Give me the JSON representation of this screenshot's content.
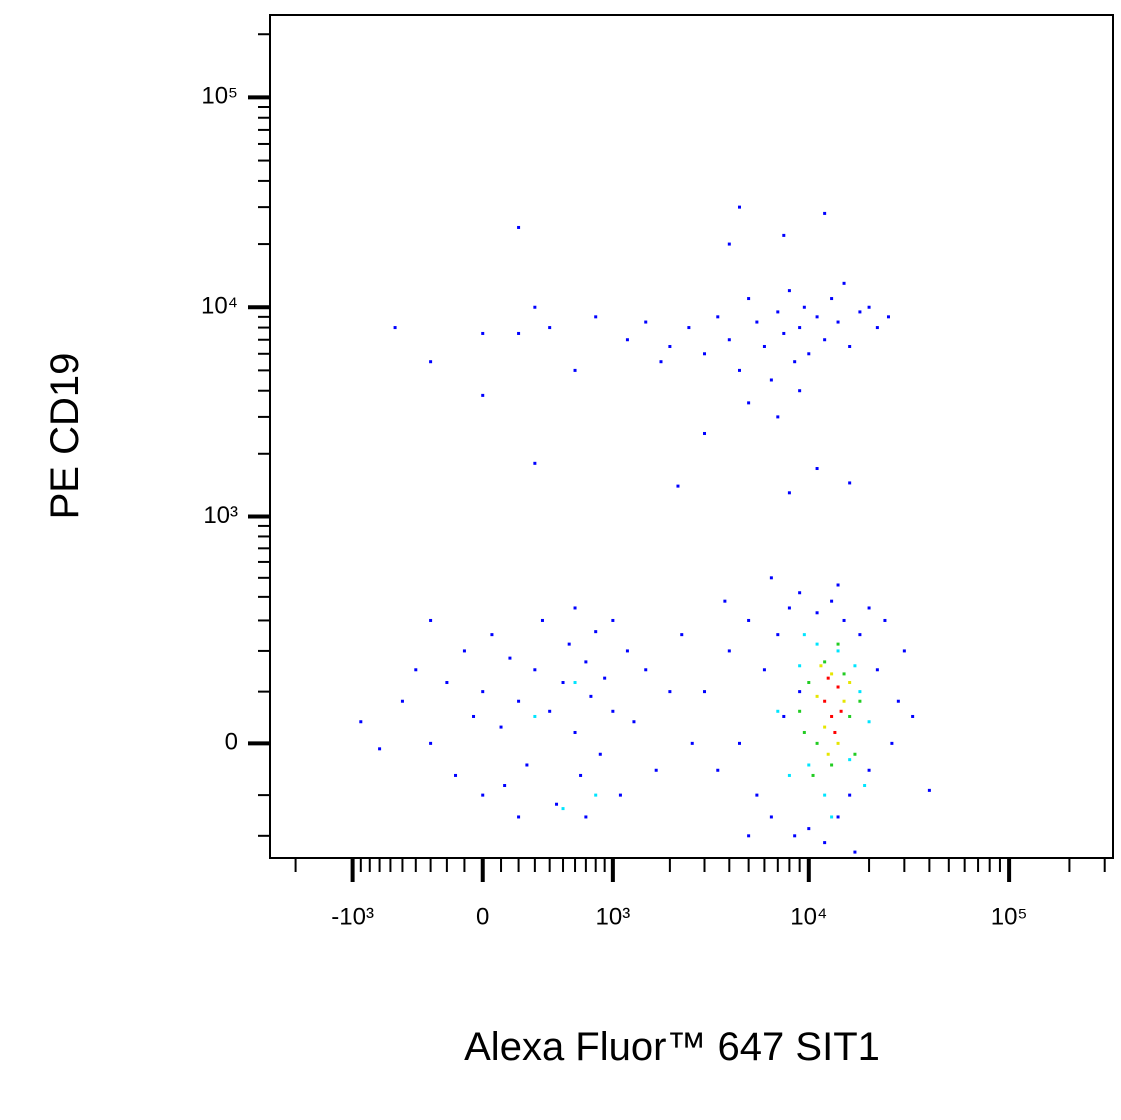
{
  "chart_data": {
    "type": "scatter",
    "x_label": "Alexa Fluor™ 647 SIT1",
    "y_label": "PE CD19",
    "xscale": "biexponential",
    "yscale": "biexponential",
    "xlim": [
      -2700,
      330000
    ],
    "ylim": [
      -270,
      247000
    ],
    "xticks": [
      {
        "value": -1000,
        "label": "-10³"
      },
      0,
      {
        "value": 1000,
        "label": "10³"
      },
      {
        "value": 10000,
        "label": "10⁴"
      },
      {
        "value": 100000,
        "label": "10⁵"
      }
    ],
    "yticks": [
      0,
      {
        "value": 1000,
        "label": "10³"
      },
      {
        "value": 10000,
        "label": "10⁴"
      },
      {
        "value": 100000,
        "label": "10⁵"
      }
    ],
    "xminorticks": [
      -2000,
      -900,
      -800,
      -700,
      -600,
      -500,
      -400,
      -300,
      -200,
      -100,
      100,
      200,
      300,
      400,
      500,
      600,
      700,
      800,
      900,
      2000,
      3000,
      4000,
      5000,
      6000,
      7000,
      8000,
      9000,
      20000,
      30000,
      40000,
      50000,
      60000,
      70000,
      80000,
      90000,
      200000,
      300000
    ],
    "yminorticks": [
      -200,
      -100,
      100,
      200,
      300,
      400,
      500,
      600,
      700,
      800,
      900,
      2000,
      3000,
      4000,
      5000,
      6000,
      7000,
      8000,
      9000,
      20000,
      30000,
      40000,
      50000,
      60000,
      70000,
      80000,
      90000,
      200000
    ],
    "series": [
      {
        "color": "#0000ff",
        "x": [
          2500,
          3000,
          3500,
          4000,
          4500,
          5000,
          5500,
          6000,
          6500,
          7000,
          7500,
          8000,
          8500,
          9000,
          9500,
          10000,
          11000,
          12000,
          13000,
          14000,
          15000,
          16000,
          18000,
          20000,
          22000,
          25000,
          1200,
          1500,
          1800,
          2000,
          800,
          600,
          400,
          300,
          200,
          -560,
          -300,
          0,
          0,
          300,
          5000,
          7000,
          9000,
          4000,
          4500,
          12000,
          7500,
          200,
          2200,
          8000,
          11000,
          16000,
          3000,
          -500,
          -400,
          -300,
          -200,
          -150,
          -100,
          -50,
          0,
          0,
          50,
          100,
          120,
          150,
          200,
          250,
          300,
          350,
          400,
          450,
          500,
          550,
          600,
          650,
          700,
          750,
          800,
          850,
          900,
          1000,
          1100,
          1200,
          1300,
          1500,
          1700,
          2000,
          2300,
          2600,
          -700,
          -900,
          -300,
          600,
          1000,
          200,
          700,
          3000,
          3500,
          4000,
          4500,
          5000,
          5500,
          6000,
          6500,
          7000,
          7500,
          8000,
          8500,
          9000,
          10000,
          11000,
          12000,
          13000,
          14000,
          15000,
          16000,
          18000,
          20000,
          22000,
          24000,
          26000,
          28000,
          30000,
          33000,
          40000,
          5000,
          9000,
          17000,
          20000,
          3800,
          6500,
          14000
        ],
        "values": [
          8000,
          6000,
          9000,
          7000,
          5000,
          11000,
          8500,
          6500,
          4500,
          9500,
          7500,
          12000,
          5500,
          8000,
          10000,
          6000,
          9000,
          7000,
          11000,
          8500,
          13000,
          6500,
          9500,
          10000,
          8000,
          9000,
          7000,
          8500,
          5500,
          6500,
          9000,
          5000,
          8000,
          10000,
          7500,
          8000,
          5500,
          7500,
          3800,
          1800,
          3500,
          3000,
          4000,
          20000,
          30000,
          28000,
          22000,
          24000,
          1400,
          1300,
          1700,
          1450,
          2500,
          80,
          150,
          0,
          120,
          -60,
          200,
          50,
          100,
          -100,
          250,
          30,
          -80,
          180,
          80,
          -40,
          150,
          300,
          60,
          -120,
          120,
          220,
          20,
          -60,
          170,
          90,
          260,
          -20,
          130,
          60,
          -100,
          200,
          40,
          150,
          -50,
          100,
          250,
          0,
          -10,
          40,
          300,
          350,
          300,
          -150,
          -150,
          100,
          -50,
          200,
          0,
          300,
          -100,
          150,
          -150,
          250,
          50,
          350,
          -200,
          100,
          -180,
          330,
          -220,
          380,
          -150,
          300,
          -100,
          250,
          -50,
          150,
          300,
          0,
          80,
          200,
          50,
          -90,
          -200,
          420,
          -250,
          350,
          380,
          500,
          460
        ]
      },
      {
        "color": "#00e5ff",
        "x": [
          7000,
          8000,
          9000,
          10000,
          11000,
          12000,
          14000,
          16000,
          18000,
          20000,
          17000,
          9500,
          300,
          600,
          800,
          500,
          13000,
          19000
        ],
        "values": [
          60,
          -60,
          160,
          -40,
          220,
          -100,
          200,
          -30,
          100,
          40,
          160,
          250,
          50,
          120,
          -100,
          -130,
          -150,
          -80
        ]
      },
      {
        "color": "#22cc22",
        "x": [
          9000,
          10000,
          11000,
          12000,
          13000,
          15000,
          16000,
          17000,
          10500,
          14000,
          9500,
          18000
        ],
        "values": [
          60,
          120,
          0,
          170,
          -40,
          140,
          50,
          -20,
          -60,
          220,
          20,
          80
        ]
      },
      {
        "color": "#e6e600",
        "x": [
          11000,
          12000,
          13000,
          14000,
          15000,
          12500,
          16000,
          11500
        ],
        "values": [
          90,
          30,
          140,
          0,
          80,
          -20,
          120,
          160
        ]
      },
      {
        "color": "#ff0000",
        "x": [
          12000,
          13000,
          14000,
          13500,
          12500,
          14500
        ],
        "values": [
          80,
          50,
          110,
          20,
          130,
          60
        ]
      }
    ]
  }
}
